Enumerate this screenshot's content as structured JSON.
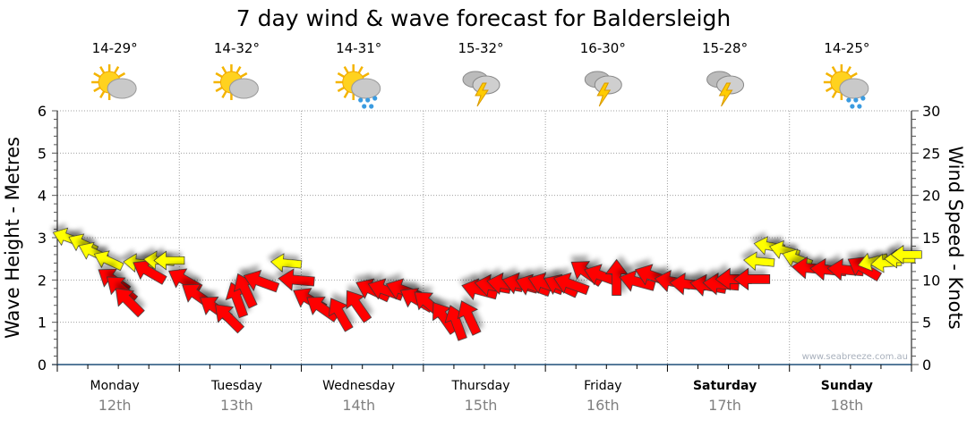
{
  "chart_data": {
    "type": "scatter",
    "title": "7 day wind & wave forecast for Baldersleigh",
    "ylabel_left": "Wave Height - Metres",
    "ylabel_right": "Wind Speed - Knots",
    "ylim_left": [
      0,
      6
    ],
    "ylim_right": [
      0,
      30
    ],
    "yticks_left": [
      "0",
      "1",
      "2",
      "3",
      "4",
      "5",
      "6"
    ],
    "yticks_right": [
      "0",
      "5",
      "10",
      "15",
      "20",
      "25",
      "30"
    ],
    "grid": true,
    "watermark": "www.seabreeze.com.au",
    "days": [
      {
        "day": "Monday",
        "date": "12th",
        "temp": "14-29°",
        "icon": "partly-cloudy",
        "bold": false
      },
      {
        "day": "Tuesday",
        "date": "13th",
        "temp": "14-32°",
        "icon": "partly-cloudy",
        "bold": false
      },
      {
        "day": "Wednesday",
        "date": "14th",
        "temp": "14-31°",
        "icon": "sun-showers",
        "bold": false
      },
      {
        "day": "Thursday",
        "date": "15th",
        "temp": "15-32°",
        "icon": "storm",
        "bold": false
      },
      {
        "day": "Friday",
        "date": "16th",
        "temp": "16-30°",
        "icon": "storm",
        "bold": false
      },
      {
        "day": "Saturday",
        "date": "17th",
        "temp": "15-28°",
        "icon": "storm",
        "bold": true
      },
      {
        "day": "Sunday",
        "date": "18th",
        "temp": "14-25°",
        "icon": "sun-showers",
        "bold": true
      }
    ],
    "x_unit": "hours from Monday 00:00",
    "wind_series": [
      {
        "h": 2,
        "knots": 15,
        "dir": 200,
        "c": "yellow"
      },
      {
        "h": 5,
        "knots": 14.3,
        "dir": 205,
        "c": "yellow"
      },
      {
        "h": 7,
        "knots": 13.3,
        "dir": 205,
        "c": "yellow"
      },
      {
        "h": 10,
        "knots": 12.3,
        "dir": 205,
        "c": "yellow"
      },
      {
        "h": 11,
        "knots": 10,
        "dir": 215,
        "c": "red"
      },
      {
        "h": 12.5,
        "knots": 9,
        "dir": 220,
        "c": "red"
      },
      {
        "h": 14,
        "knots": 7.5,
        "dir": 225,
        "c": "red"
      },
      {
        "h": 16,
        "knots": 12,
        "dir": 185,
        "c": "yellow"
      },
      {
        "h": 18,
        "knots": 11,
        "dir": 210,
        "c": "red"
      },
      {
        "h": 20,
        "knots": 12.3,
        "dir": 185,
        "c": "yellow"
      },
      {
        "h": 22,
        "knots": 12.3,
        "dir": 180,
        "c": "yellow"
      },
      {
        "h": 25,
        "knots": 10,
        "dir": 210,
        "c": "red"
      },
      {
        "h": 27.5,
        "knots": 8.2,
        "dir": 215,
        "c": "red"
      },
      {
        "h": 31,
        "knots": 6.7,
        "dir": 215,
        "c": "red"
      },
      {
        "h": 33.6,
        "knots": 5.6,
        "dir": 225,
        "c": "red"
      },
      {
        "h": 35.4,
        "knots": 7.7,
        "dir": 250,
        "c": "red"
      },
      {
        "h": 37,
        "knots": 8.8,
        "dir": 245,
        "c": "red"
      },
      {
        "h": 40,
        "knots": 9.8,
        "dir": 200,
        "c": "red"
      },
      {
        "h": 45,
        "knots": 12,
        "dir": 185,
        "c": "yellow"
      },
      {
        "h": 47,
        "knots": 10,
        "dir": 185,
        "c": "red"
      },
      {
        "h": 49.5,
        "knots": 7.7,
        "dir": 210,
        "c": "red"
      },
      {
        "h": 52,
        "knots": 6.7,
        "dir": 215,
        "c": "red"
      },
      {
        "h": 55.6,
        "knots": 6,
        "dir": 240,
        "c": "red"
      },
      {
        "h": 59,
        "knots": 7,
        "dir": 235,
        "c": "red"
      },
      {
        "h": 62,
        "knots": 8.8,
        "dir": 205,
        "c": "red"
      },
      {
        "h": 64.5,
        "knots": 8.8,
        "dir": 200,
        "c": "red"
      },
      {
        "h": 68,
        "knots": 8.8,
        "dir": 200,
        "c": "red"
      },
      {
        "h": 70.6,
        "knots": 7.7,
        "dir": 210,
        "c": "red"
      },
      {
        "h": 73,
        "knots": 7.2,
        "dir": 220,
        "c": "red"
      },
      {
        "h": 76,
        "knots": 5.6,
        "dir": 235,
        "c": "red"
      },
      {
        "h": 78.5,
        "knots": 5,
        "dir": 250,
        "c": "red"
      },
      {
        "h": 81,
        "knots": 5.6,
        "dir": 245,
        "c": "red"
      },
      {
        "h": 83,
        "knots": 8.8,
        "dir": 195,
        "c": "red"
      },
      {
        "h": 85.6,
        "knots": 9.3,
        "dir": 190,
        "c": "red"
      },
      {
        "h": 88,
        "knots": 9.5,
        "dir": 190,
        "c": "red"
      },
      {
        "h": 91,
        "knots": 9.5,
        "dir": 195,
        "c": "red"
      },
      {
        "h": 93.5,
        "knots": 9.3,
        "dir": 200,
        "c": "red"
      },
      {
        "h": 96,
        "knots": 9.5,
        "dir": 200,
        "c": "red"
      },
      {
        "h": 99,
        "knots": 9.3,
        "dir": 205,
        "c": "red"
      },
      {
        "h": 101,
        "knots": 9.5,
        "dir": 200,
        "c": "red"
      },
      {
        "h": 104,
        "knots": 10.9,
        "dir": 215,
        "c": "red"
      },
      {
        "h": 107,
        "knots": 10.5,
        "dir": 200,
        "c": "red"
      },
      {
        "h": 110,
        "knots": 10.3,
        "dir": 270,
        "c": "red"
      },
      {
        "h": 114,
        "knots": 9.8,
        "dir": 195,
        "c": "red"
      },
      {
        "h": 117,
        "knots": 10.5,
        "dir": 200,
        "c": "red"
      },
      {
        "h": 121,
        "knots": 9.8,
        "dir": 190,
        "c": "red"
      },
      {
        "h": 124,
        "knots": 9.5,
        "dir": 185,
        "c": "red"
      },
      {
        "h": 128,
        "knots": 9.3,
        "dir": 190,
        "c": "red"
      },
      {
        "h": 130.5,
        "knots": 9.5,
        "dir": 185,
        "c": "red"
      },
      {
        "h": 133,
        "knots": 10.1,
        "dir": 180,
        "c": "red"
      },
      {
        "h": 136.6,
        "knots": 10.1,
        "dir": 180,
        "c": "red"
      },
      {
        "h": 138,
        "knots": 12.2,
        "dir": 185,
        "c": "yellow"
      },
      {
        "h": 140,
        "knots": 14,
        "dir": 190,
        "c": "yellow"
      },
      {
        "h": 143,
        "knots": 13.5,
        "dir": 195,
        "c": "yellow"
      },
      {
        "h": 145.5,
        "knots": 12.5,
        "dir": 200,
        "c": "yellow"
      },
      {
        "h": 148,
        "knots": 11.4,
        "dir": 185,
        "c": "red"
      },
      {
        "h": 151.6,
        "knots": 11.2,
        "dir": 185,
        "c": "red"
      },
      {
        "h": 155,
        "knots": 11.2,
        "dir": 185,
        "c": "red"
      },
      {
        "h": 158.6,
        "knots": 11.4,
        "dir": 210,
        "c": "red"
      },
      {
        "h": 160.4,
        "knots": 12.2,
        "dir": 165,
        "c": "yellow"
      },
      {
        "h": 163,
        "knots": 12,
        "dir": 175,
        "c": "yellow"
      },
      {
        "h": 165.7,
        "knots": 12.5,
        "dir": 180,
        "c": "yellow"
      },
      {
        "h": 167,
        "knots": 13,
        "dir": 180,
        "c": "yellow"
      }
    ]
  },
  "colors": {
    "red": "#ff0000",
    "yellow": "#ffff00",
    "axis": "#1f4e79"
  }
}
